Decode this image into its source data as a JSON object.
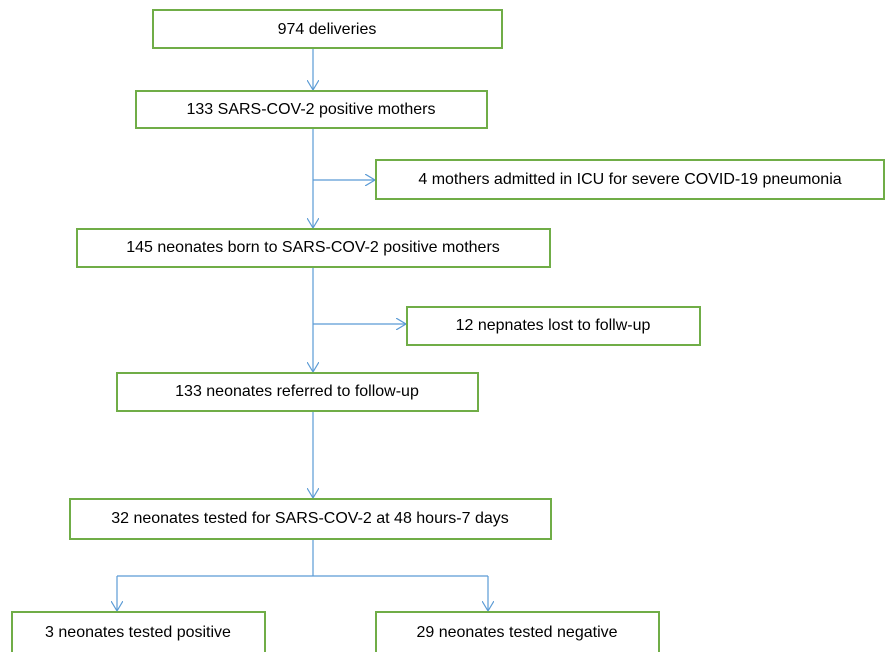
{
  "nodes": [
    {
      "label": "974 deliveries"
    },
    {
      "label": "133 SARS-COV-2 positive mothers"
    },
    {
      "label": "4 mothers admitted in ICU for severe COVID-19 pneumonia"
    },
    {
      "label": "145 neonates born to SARS-COV-2 positive mothers"
    },
    {
      "label": "12 nepnates lost to follw-up"
    },
    {
      "label": "133 neonates referred to follow-up"
    },
    {
      "label": "32 neonates tested for SARS-COV-2 at 48 hours-7 days"
    },
    {
      "label": "3 neonates tested positive"
    },
    {
      "label": "29 neonates tested negative"
    }
  ]
}
